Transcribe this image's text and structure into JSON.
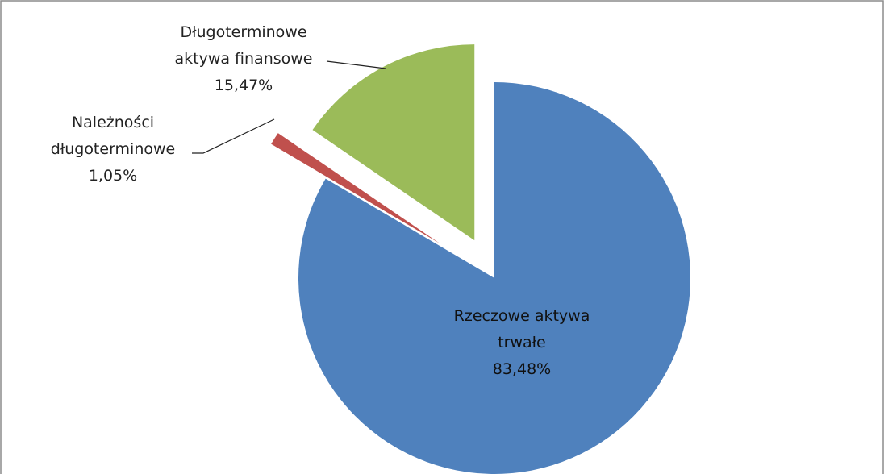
{
  "chart_data": {
    "type": "pie",
    "categories": [
      "Rzeczowe aktywa trwałe",
      "Należności długoterminowe",
      "Długoterminowe aktywa finansowe"
    ],
    "values": [
      83.48,
      1.05,
      15.47
    ],
    "value_labels": [
      "83,48%",
      "1,05%",
      "15,47%"
    ],
    "colors": [
      "#4f81bd",
      "#c0504d",
      "#9bbb59"
    ]
  }
}
